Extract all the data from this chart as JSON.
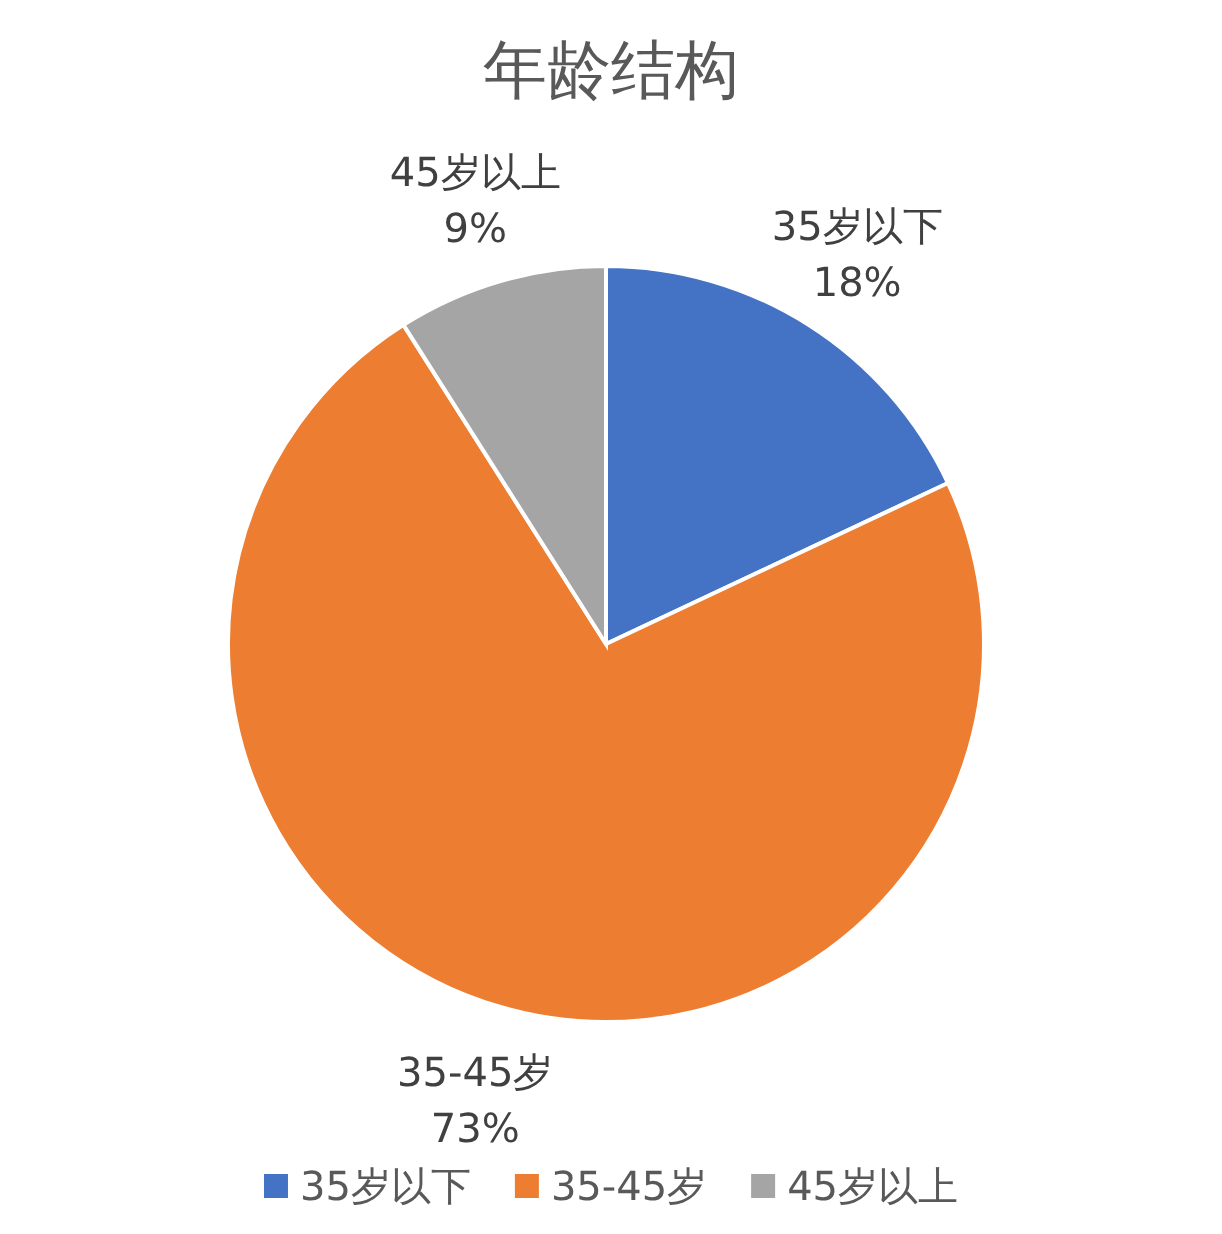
{
  "chart_data": {
    "type": "pie",
    "title": "年龄结构",
    "categories": [
      "35岁以下",
      "35-45岁",
      "45岁以上"
    ],
    "values": [
      18,
      73,
      9
    ],
    "value_labels": [
      "18%",
      "73%",
      "9%"
    ],
    "colors": [
      "#4472c4",
      "#ed7d31",
      "#a5a5a5"
    ],
    "legend": "bottom"
  }
}
